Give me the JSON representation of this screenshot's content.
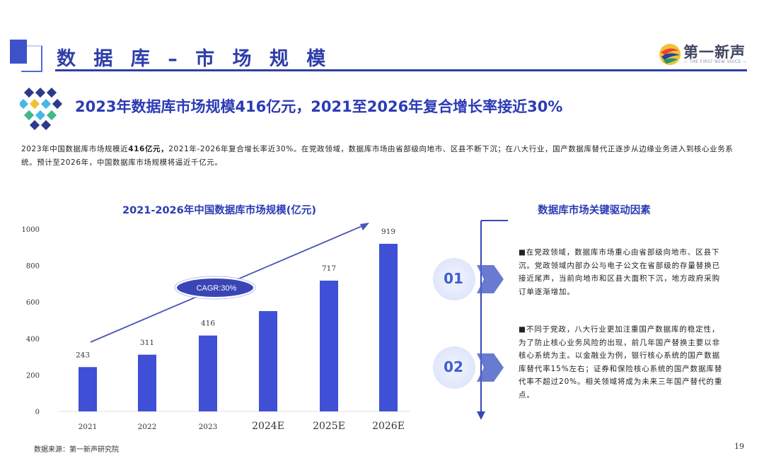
{
  "header": {
    "title": "数 据 库 – 市 场 规 模",
    "logo_name": "第一新声",
    "logo_sub": "— THE FIRST NEW VOICE —"
  },
  "headline": "2023年数据库市场规模416亿元，2021至2026年复合增长率接近30%",
  "summary": {
    "part1": "2023年中国数据库市场规模近",
    "bold": "416亿元，",
    "part2": "2021年-2026年复合增长率近30%。在党政领域，数据库市场由省部级向地市、区县不断下沉；在八大行业，国产数据库替代正逐步从边缘业务进入到核心业务系统。预计至2026年，中国数据库市场规模将逼近千亿元。"
  },
  "chart_data": {
    "type": "bar",
    "title": "2021-2026年中国数据库市场规模(亿元)",
    "categories": [
      "2021",
      "2022",
      "2023",
      "2024E",
      "2025E",
      "2026E"
    ],
    "values": [
      243,
      311,
      416,
      550,
      717,
      919
    ],
    "data_labels": [
      "243",
      "311",
      "416",
      "",
      "717",
      "919"
    ],
    "y_ticks": [
      0,
      200,
      400,
      600,
      800,
      1000
    ],
    "ylim": [
      0,
      1000
    ],
    "annotation": "CAGR:30%",
    "bar_color": "#3f4fd6"
  },
  "drivers": {
    "title": "数据库市场关键驱动因素",
    "items": [
      {
        "num": "01",
        "text": "■在党政领域，数据库市场重心由省部级向地市、区县下沉。党政领域内部办公与电子公文在省部级的存量替换已接近尾声，当前向地市和区县大面积下沉，地方政府采购订单逐渐增加。"
      },
      {
        "num": "02",
        "text": "■不同于党政，八大行业更加注重国产数据库的稳定性，为了防止核心业务风险的出现，前几年国产替换主要以非核心系统为主。以金融业为例，银行核心系统的国产数据库替代率15%左右；证券和保险核心系统的国产数据库替代率不超过20%。相关领域将成为未来三年国产替代的重点。"
      }
    ]
  },
  "footer": {
    "source": "数据来源：第一新声研究院",
    "page_number": "19"
  }
}
